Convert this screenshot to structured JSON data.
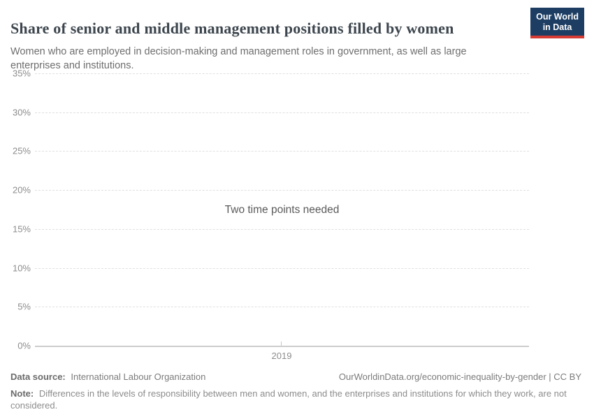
{
  "header": {
    "title": "Share of senior and middle management positions filled by women",
    "subtitle": "Women who are employed in decision-making and management roles in government, as well as large enterprises and institutions.",
    "logo": {
      "line1": "Our World",
      "line2": "in Data"
    }
  },
  "chart_data": {
    "type": "line",
    "title": "Share of senior and middle management positions filled by women",
    "subtitle": "Women who are employed in decision-making and management roles in government, as well as large enterprises and institutions.",
    "series": [],
    "message": "Two time points needed",
    "x_ticks": [
      "2019"
    ],
    "y_ticks": [
      "0%",
      "5%",
      "10%",
      "15%",
      "20%",
      "25%",
      "30%",
      "35%"
    ],
    "ylim": [
      0,
      35
    ],
    "xlabel": "",
    "ylabel": "",
    "grid": "dashed-horizontal",
    "legend": "none"
  },
  "footer": {
    "datasource_label": "Data source:",
    "datasource_value": "International Labour Organization",
    "link": "OurWorldinData.org/economic-inequality-by-gender | CC BY",
    "note_label": "Note:",
    "note_value": "Differences in the levels of responsibility between men and women, and the enterprises and institutions for which they work, are not considered."
  },
  "colors": {
    "logo_bg": "#1d3d63",
    "logo_accent": "#d73c34",
    "gridline": "#e0e0e0",
    "axis": "#cccccc",
    "title_text": "#3d464e",
    "muted_text": "#8c8c8c"
  }
}
